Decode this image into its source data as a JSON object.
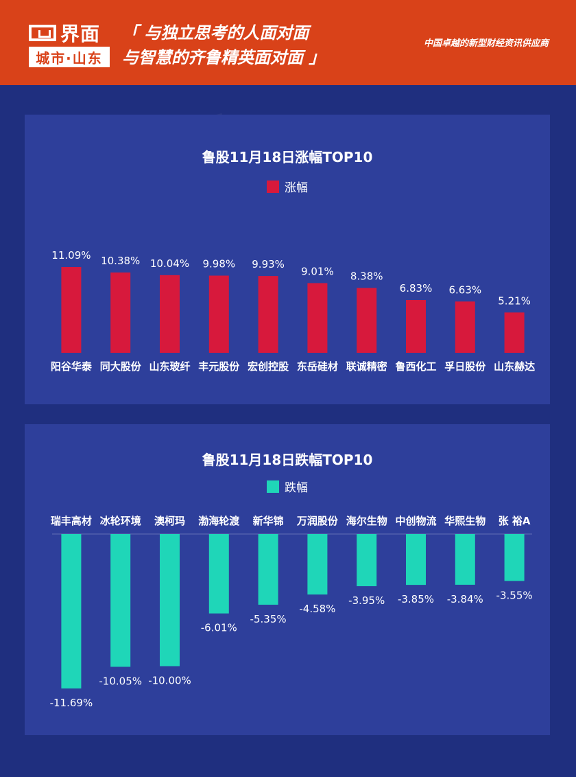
{
  "header": {
    "logo_name": "界面",
    "logo_sub": "城市·山东",
    "slogan_line1": "「 与独立思考的人面对面",
    "slogan_line2": "与智慧的齐鲁精英面对面 」",
    "tagline": "中国卓越的新型财经资讯供应商",
    "bg_color": "#d94219"
  },
  "chart_data": [
    {
      "type": "bar",
      "title": "鲁股11月18日涨幅TOP10",
      "legend": "涨幅",
      "color": "#d7193c",
      "categories": [
        "阳谷华泰",
        "同大股份",
        "山东玻纤",
        "丰元股份",
        "宏创控股",
        "东岳硅材",
        "联诚精密",
        "鲁西化工",
        "孚日股份",
        "山东赫达"
      ],
      "values": [
        11.09,
        10.38,
        10.04,
        9.98,
        9.93,
        9.01,
        8.38,
        6.83,
        6.63,
        5.21
      ],
      "labels": [
        "11.09%",
        "10.38%",
        "10.04%",
        "9.98%",
        "9.93%",
        "9.01%",
        "8.38%",
        "6.83%",
        "6.63%",
        "5.21%"
      ],
      "ylim": [
        0,
        12
      ]
    },
    {
      "type": "bar",
      "title": "鲁股11月18日跌幅TOP10",
      "legend": "跌幅",
      "color": "#1fd6b8",
      "categories": [
        "瑞丰高材",
        "冰轮环境",
        "澳柯玛",
        "渤海轮渡",
        "新华锦",
        "万润股份",
        "海尔生物",
        "中创物流",
        "华熙生物",
        "张 裕A"
      ],
      "values": [
        -11.69,
        -10.05,
        -10.0,
        -6.01,
        -5.35,
        -4.58,
        -3.95,
        -3.85,
        -3.84,
        -3.55
      ],
      "labels": [
        "-11.69%",
        "-10.05%",
        "-10.00%",
        "-6.01%",
        "-5.35%",
        "-4.58%",
        "-3.95%",
        "-3.85%",
        "-3.84%",
        "-3.55%"
      ],
      "ylim": [
        -12,
        0
      ]
    }
  ]
}
